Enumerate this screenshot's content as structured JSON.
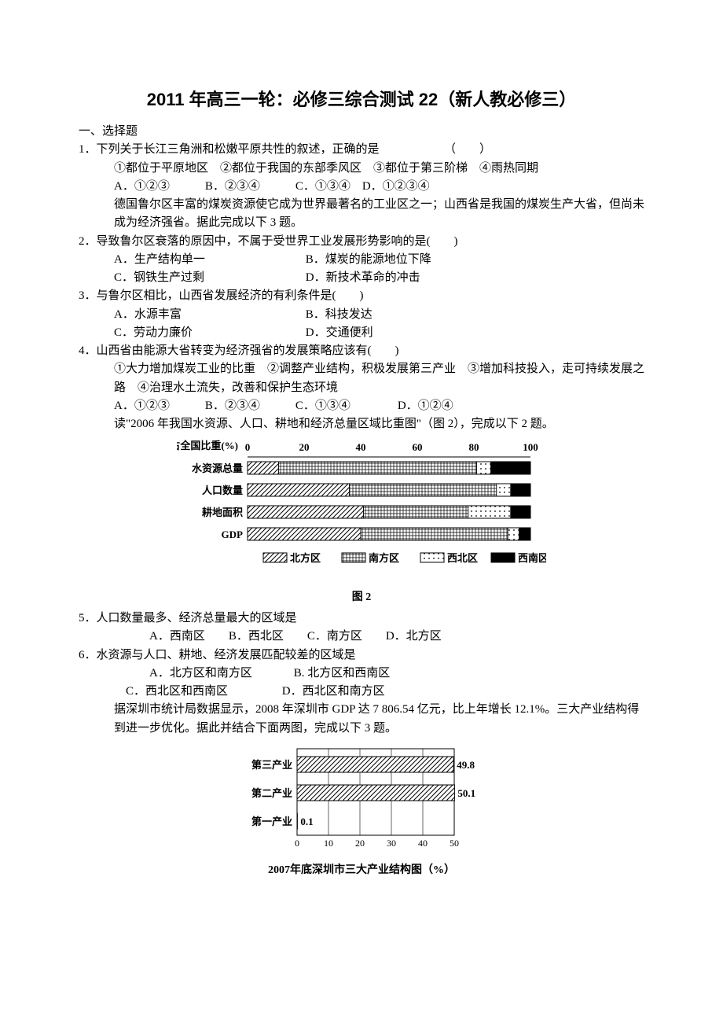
{
  "title": "2011 年高三一轮：必修三综合测试 22（新人教必修三）",
  "section1": "一、选择题",
  "q1": {
    "stem": "1．下列关于长江三角洲和松嫩平原共性的叙述，正确的是　　　　　　（　　）",
    "line2": "①都位于平原地区　②都位于我国的东部季风区　③都位于第三阶梯　④雨热同期",
    "opts": "A．①②③　　　B．②③④　　　C．①③④　D．①②③④"
  },
  "ctx_a": "德国鲁尔区丰富的煤炭资源使它成为世界最著名的工业区之一；山西省是我国的煤炭生产大省，但尚未成为经济强省。据此完成以下 3 题。",
  "q2": {
    "stem": "2．导致鲁尔区衰落的原因中，不属于受世界工业发展形势影响的是(　　)",
    "row1a": "A．生产结构单一",
    "row1b": "B．煤炭的能源地位下降",
    "row2a": "C．钢铁生产过剩",
    "row2b": "D．新技术革命的冲击"
  },
  "q3": {
    "stem": "3．与鲁尔区相比，山西省发展经济的有利条件是(　　)",
    "row1a": "A．水源丰富",
    "row1b": "B．科技发达",
    "row2a": "C．劳动力廉价",
    "row2b": "D．交通便利"
  },
  "q4": {
    "stem": "4．山西省由能源大省转变为经济强省的发展策略应该有(　　)",
    "line2": "①大力增加煤炭工业的比重　②调整产业结构，积极发展第三产业　③增加科技投入，走可持续发展之路　④治理水土流失，改善和保护生态环境",
    "opts": "A．①②③　　　B．②③④　　　C．①③④　　　　D．①②④"
  },
  "ctx_b": "读\"2006 年我国水资源、人口、耕地和经济总量区域比重图\"（图 2），完成以下 2 题。",
  "fig2": {
    "axis_label": "占全国比重(%)",
    "ticks": [
      "0",
      "20",
      "40",
      "60",
      "80",
      "100"
    ],
    "rows": [
      "水资源总量",
      "人口数量",
      "耕地面积",
      "GDP"
    ],
    "legend": [
      "北方区",
      "南方区",
      "西北区",
      "西南区"
    ],
    "caption": "图 2",
    "data": {
      "water": [
        11,
        70,
        5,
        14
      ],
      "pop": [
        36,
        52,
        5,
        7
      ],
      "land": [
        41,
        37,
        15,
        7
      ],
      "gdp": [
        40,
        52,
        4,
        4
      ]
    },
    "colors": {
      "axis": "#000",
      "bg": "#fff"
    }
  },
  "q5": {
    "stem": "5．人口数量最多、经济总量最大的区域是",
    "opts": "A．西南区　　B．西北区　　C．南方区　　D．北方区"
  },
  "q6": {
    "stem": "6．水资源与人口、耕地、经济发展匹配较差的区域是",
    "row1a": "A．北方区和南方区",
    "row1b": "B. 北方区和西南区",
    "row2a": "C．西北区和西南区",
    "row2b": "D．西北区和南方区"
  },
  "ctx_c": "据深圳市统计局数据显示，2008 年深圳市 GDP 达 7 806.54 亿元，比上年增长 12.1%。三大产业结构得到进一步优化。据此并结合下面两图，完成以下 3 题。",
  "fig3": {
    "rows": [
      "第三产业",
      "第二产业",
      "第一产业"
    ],
    "values": [
      49.8,
      50.1,
      0.1
    ],
    "ticks": [
      "0",
      "10",
      "20",
      "30",
      "40",
      "50"
    ],
    "caption": "2007年底深圳市三大产业结构图（%）",
    "fill": "#fff",
    "stroke": "#000"
  }
}
